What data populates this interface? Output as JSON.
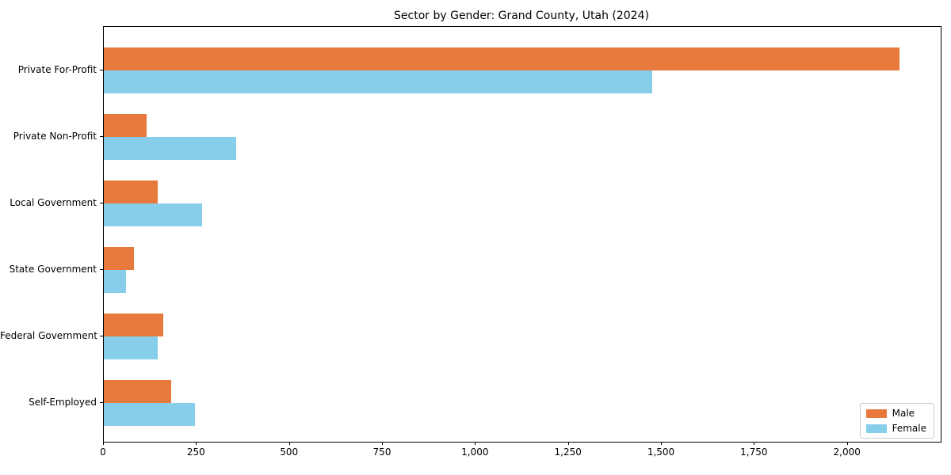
{
  "chart_data": {
    "type": "bar",
    "orientation": "horizontal",
    "title": "Sector by Gender: Grand County, Utah (2024)",
    "categories": [
      "Private For-Profit",
      "Private Non-Profit",
      "Local Government",
      "State Government",
      "Federal Government",
      "Self-Employed"
    ],
    "series": [
      {
        "name": "Male",
        "color": "#E8793D",
        "values": [
          2140,
          115,
          145,
          80,
          160,
          180
        ]
      },
      {
        "name": "Female",
        "color": "#87CEEB",
        "values": [
          1475,
          355,
          265,
          60,
          145,
          245
        ]
      }
    ],
    "xlabel": "",
    "ylabel": "",
    "xlim": [
      0,
      2250
    ],
    "x_ticks": [
      0,
      250,
      500,
      750,
      1000,
      1250,
      1500,
      1750,
      2000
    ],
    "x_tick_labels": [
      "0",
      "250",
      "500",
      "750",
      "1,000",
      "1,250",
      "1,500",
      "1,750",
      "2,000"
    ],
    "grid": false,
    "legend_position": "lower-right"
  }
}
